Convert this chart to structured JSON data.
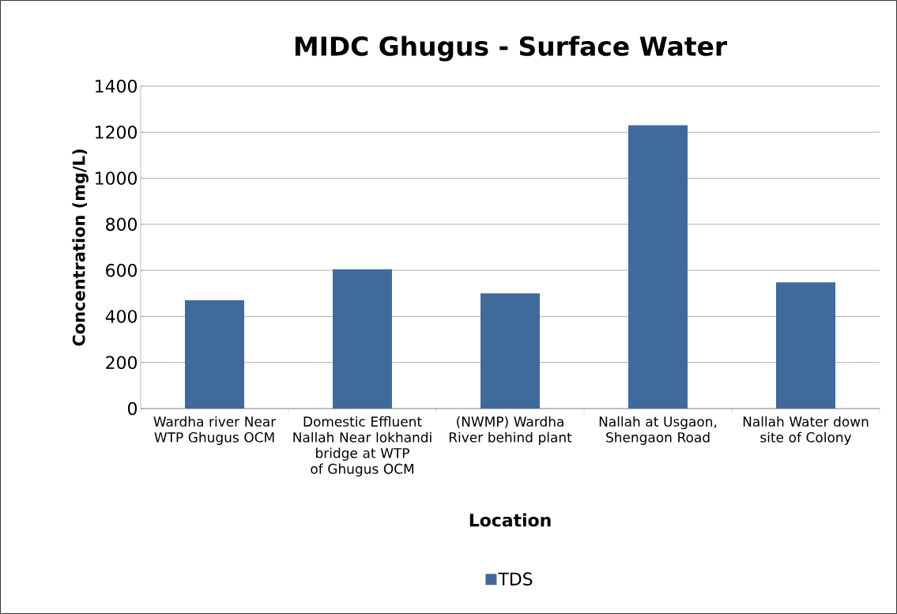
{
  "chart_data": {
    "type": "bar",
    "title": "MIDC Ghugus - Surface Water",
    "xlabel": "Location",
    "ylabel": "Concentration (mg/L)",
    "categories": [
      "Wardha river Near WTP Ghugus OCM",
      "Domestic Effluent Nallah Near lokhandi bridge at WTP of Ghugus OCM",
      "(NWMP) Wardha River behind plant",
      "Nallah at Usgaon, Shengaon Road",
      "Nallah Water down site of Colony"
    ],
    "series": [
      {
        "name": "TDS",
        "color": "#406a9c",
        "values": [
          470,
          605,
          500,
          1230,
          548
        ]
      }
    ],
    "ylim": [
      0,
      1400
    ],
    "yticks": [
      0,
      200,
      400,
      600,
      800,
      1000,
      1200,
      1400
    ],
    "grid": "y",
    "legend": "bottom"
  }
}
